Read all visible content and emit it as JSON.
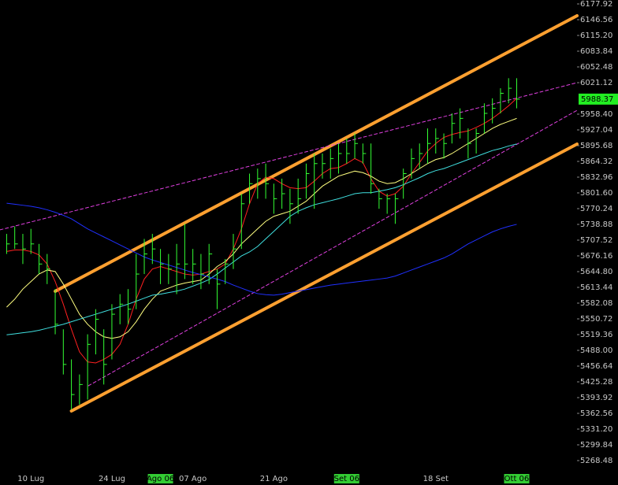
{
  "chart_data": {
    "type": "ohlc",
    "bar_color": "#33ff33",
    "background": "#000000",
    "categories": [
      null,
      null,
      null,
      "10 Lug",
      null,
      null,
      null,
      null,
      null,
      null,
      null,
      null,
      null,
      "24 Lug",
      null,
      null,
      null,
      null,
      null,
      "Ago 06",
      null,
      null,
      null,
      "07 Ago",
      null,
      null,
      null,
      null,
      null,
      null,
      null,
      null,
      null,
      "21 Ago",
      null,
      null,
      null,
      null,
      null,
      null,
      null,
      null,
      "Set 06",
      null,
      null,
      null,
      null,
      null,
      null,
      null,
      null,
      null,
      null,
      "18 Set",
      null,
      null,
      null,
      null,
      null,
      null,
      null,
      null,
      null,
      "Ott 06"
    ],
    "highlighted_categories": [
      19,
      42,
      63
    ],
    "highlight_color": "#33cc33",
    "high": [
      5720,
      5735,
      5720,
      5730,
      5700,
      5680,
      5610,
      5530,
      5470,
      5440,
      5520,
      5570,
      5530,
      5580,
      5600,
      5610,
      5680,
      5710,
      5720,
      5690,
      5680,
      5700,
      5740,
      5690,
      5680,
      5700,
      5650,
      5670,
      5720,
      5800,
      5840,
      5850,
      5860,
      5820,
      5830,
      5810,
      5830,
      5860,
      5880,
      5880,
      5890,
      5900,
      5910,
      5920,
      5900,
      5900,
      5810,
      5800,
      5800,
      5850,
      5890,
      5900,
      5930,
      5930,
      5920,
      5960,
      5970,
      5930,
      5930,
      5980,
      5990,
      6010,
      6030,
      6030
    ],
    "low": [
      5680,
      5690,
      5660,
      5680,
      5640,
      5620,
      5520,
      5440,
      5370,
      5380,
      5390,
      5480,
      5420,
      5470,
      5540,
      5540,
      5570,
      5640,
      5660,
      5620,
      5620,
      5600,
      5630,
      5620,
      5610,
      5620,
      5570,
      5620,
      5650,
      5690,
      5780,
      5790,
      5790,
      5760,
      5770,
      5740,
      5760,
      5790,
      5770,
      5830,
      5830,
      5840,
      5860,
      5870,
      5860,
      5800,
      5770,
      5760,
      5740,
      5790,
      5830,
      5850,
      5860,
      5880,
      5870,
      5900,
      5910,
      5870,
      5880,
      5920,
      5940,
      5960,
      5980,
      5970
    ],
    "close": [
      5700,
      5700,
      5690,
      5700,
      5660,
      5650,
      5540,
      5460,
      5400,
      5420,
      5500,
      5550,
      5460,
      5560,
      5580,
      5570,
      5640,
      5680,
      5690,
      5660,
      5650,
      5660,
      5660,
      5660,
      5640,
      5680,
      5620,
      5660,
      5690,
      5780,
      5820,
      5830,
      5820,
      5790,
      5800,
      5780,
      5790,
      5840,
      5860,
      5860,
      5870,
      5880,
      5880,
      5900,
      5880,
      5820,
      5790,
      5790,
      5790,
      5840,
      5870,
      5880,
      5900,
      5910,
      5900,
      5940,
      5950,
      5900,
      5920,
      5960,
      5970,
      6000,
      6010,
      5988.37
    ],
    "overlays": [
      {
        "color": "#ff2020",
        "values": [
          5685,
          5688,
          5688,
          5685,
          5678,
          5660,
          5625,
          5580,
          5530,
          5485,
          5465,
          5463,
          5470,
          5480,
          5500,
          5540,
          5590,
          5630,
          5650,
          5655,
          5650,
          5645,
          5640,
          5638,
          5640,
          5645,
          5650,
          5660,
          5690,
          5730,
          5780,
          5820,
          5833,
          5830,
          5820,
          5812,
          5810,
          5812,
          5825,
          5840,
          5850,
          5852,
          5860,
          5870,
          5862,
          5830,
          5805,
          5795,
          5800,
          5815,
          5840,
          5862,
          5885,
          5900,
          5912,
          5918,
          5922,
          5925,
          5932,
          5940,
          5950,
          5962,
          5975,
          5990
        ]
      },
      {
        "color": "#ffff80",
        "values": [
          5574,
          5590,
          5610,
          5625,
          5640,
          5648,
          5645,
          5620,
          5590,
          5560,
          5540,
          5525,
          5515,
          5512,
          5515,
          5525,
          5545,
          5570,
          5590,
          5606,
          5612,
          5618,
          5622,
          5625,
          5628,
          5640,
          5655,
          5665,
          5680,
          5700,
          5715,
          5730,
          5745,
          5755,
          5760,
          5765,
          5775,
          5785,
          5800,
          5815,
          5825,
          5835,
          5840,
          5845,
          5842,
          5835,
          5825,
          5820,
          5822,
          5830,
          5840,
          5850,
          5860,
          5868,
          5872,
          5880,
          5890,
          5900,
          5910,
          5920,
          5930,
          5938,
          5944,
          5950
        ]
      },
      {
        "color": "#40e0e0",
        "values": [
          5519,
          5521,
          5523,
          5525,
          5528,
          5532,
          5536,
          5540,
          5545,
          5550,
          5555,
          5560,
          5565,
          5570,
          5575,
          5580,
          5586,
          5592,
          5598,
          5600,
          5603,
          5606,
          5610,
          5616,
          5622,
          5629,
          5640,
          5652,
          5664,
          5676,
          5684,
          5695,
          5710,
          5725,
          5740,
          5755,
          5765,
          5772,
          5778,
          5782,
          5786,
          5790,
          5795,
          5800,
          5802,
          5802,
          5805,
          5808,
          5812,
          5818,
          5825,
          5832,
          5840,
          5846,
          5850,
          5856,
          5862,
          5868,
          5874,
          5880,
          5886,
          5890,
          5895,
          5899
        ]
      },
      {
        "color": "#2030ff",
        "values": [
          5781,
          5779,
          5777,
          5775,
          5772,
          5768,
          5763,
          5757,
          5750,
          5740,
          5730,
          5722,
          5714,
          5706,
          5698,
          5690,
          5682,
          5674,
          5668,
          5663,
          5658,
          5653,
          5648,
          5643,
          5639,
          5634,
          5630,
          5625,
          5618,
          5612,
          5606,
          5601,
          5599,
          5598,
          5600,
          5603,
          5606,
          5609,
          5612,
          5615,
          5618,
          5620,
          5622,
          5624,
          5626,
          5628,
          5630,
          5632,
          5636,
          5642,
          5648,
          5654,
          5660,
          5666,
          5672,
          5680,
          5690,
          5700,
          5708,
          5716,
          5724,
          5730,
          5735,
          5739
        ]
      }
    ],
    "trendlines": [
      {
        "color": "#ffa030",
        "style": "solid",
        "x": [
          6,
          70.45
        ],
        "y": [
          5605.7,
          6154.4
        ]
      },
      {
        "color": "#ffa030",
        "style": "solid",
        "x": [
          8,
          70.45
        ],
        "y": [
          5367.3,
          5898.8
        ]
      },
      {
        "color": "#e040e0",
        "style": "dashed",
        "x": [
          -0.82,
          70.45
        ],
        "y": [
          5728,
          6021.1
        ]
      },
      {
        "color": "#e040e0",
        "style": "dashed",
        "x": [
          10.1,
          70.45
        ],
        "y": [
          5417.5,
          5966
        ]
      }
    ],
    "xlim": [
      -0.82,
      70.45
    ],
    "ylim": [
      5244.96,
      6185.76
    ],
    "yticks": [
      {
        "value": 6177.92,
        "label": "6177.92"
      },
      {
        "value": 6146.56,
        "label": "6146.56"
      },
      {
        "value": 6115.2,
        "label": "6115.20"
      },
      {
        "value": 6083.84,
        "label": "6083.84"
      },
      {
        "value": 6052.48,
        "label": "6052.48"
      },
      {
        "value": 6021.12,
        "label": "6021.12"
      },
      {
        "value": 5958.4,
        "label": "5958.40"
      },
      {
        "value": 5927.04,
        "label": "5927.04"
      },
      {
        "value": 5895.68,
        "label": "5895.68"
      },
      {
        "value": 5864.32,
        "label": "5864.32"
      },
      {
        "value": 5832.96,
        "label": "5832.96"
      },
      {
        "value": 5801.6,
        "label": "5801.60"
      },
      {
        "value": 5770.24,
        "label": "5770.24"
      },
      {
        "value": 5738.88,
        "label": "5738.88"
      },
      {
        "value": 5707.52,
        "label": "5707.52"
      },
      {
        "value": 5676.16,
        "label": "5676.16"
      },
      {
        "value": 5644.8,
        "label": "5644.80"
      },
      {
        "value": 5613.44,
        "label": "5613.44"
      },
      {
        "value": 5582.08,
        "label": "5582.08"
      },
      {
        "value": 5550.72,
        "label": "5550.72"
      },
      {
        "value": 5519.36,
        "label": "5519.36"
      },
      {
        "value": 5488,
        "label": "5488.00"
      },
      {
        "value": 5456.64,
        "label": "5456.64"
      },
      {
        "value": 5425.28,
        "label": "5425.28"
      },
      {
        "value": 5393.92,
        "label": "5393.92"
      },
      {
        "value": 5362.56,
        "label": "5362.56"
      },
      {
        "value": 5331.2,
        "label": "5331.20"
      },
      {
        "value": 5299.84,
        "label": "5299.84"
      },
      {
        "value": 5268.48,
        "label": "5268.48"
      }
    ],
    "last_price_color": "#22ee22"
  }
}
